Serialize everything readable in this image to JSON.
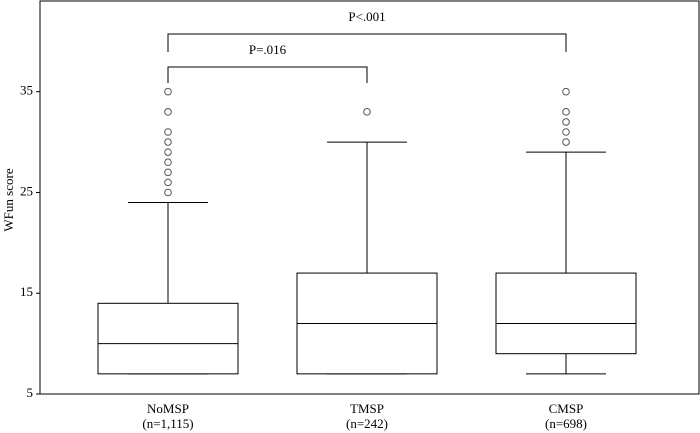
{
  "chart_data": {
    "type": "boxplot",
    "y_label": "WFun score",
    "categories": [
      "NoMSP",
      "TMSP",
      "CMSP"
    ],
    "category_sublabels": [
      "(n=1,115)",
      "(n=242)",
      "(n=698)"
    ],
    "boxes": [
      {
        "whisker_low": 7,
        "q1": 7,
        "median": 10,
        "q3": 14,
        "whisker_high": 24,
        "outliers": [
          25,
          26,
          27,
          28,
          29,
          30,
          31,
          33,
          35
        ]
      },
      {
        "whisker_low": 7,
        "q1": 7,
        "median": 12,
        "q3": 17,
        "whisker_high": 30,
        "outliers": [
          33
        ]
      },
      {
        "whisker_low": 7,
        "q1": 9,
        "median": 12,
        "q3": 17,
        "whisker_high": 29,
        "outliers": [
          30,
          31,
          32,
          33,
          35
        ]
      }
    ],
    "annotations": [
      {
        "text": "P=.016",
        "from": 0,
        "to": 1
      },
      {
        "text": "P<.001",
        "from": 0,
        "to": 2
      }
    ],
    "ylim": [
      5,
      44
    ],
    "yticks": [
      5,
      15,
      25,
      35
    ]
  }
}
